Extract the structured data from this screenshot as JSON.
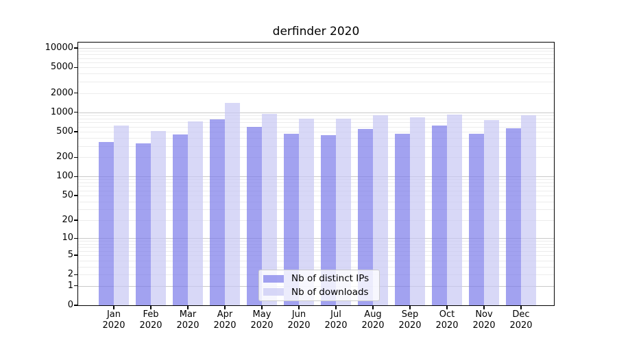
{
  "figure_title": "derfinder 2020",
  "chart_data": {
    "type": "bar",
    "title": "derfinder 2020",
    "categories": [
      "Jan",
      "Feb",
      "Mar",
      "Apr",
      "May",
      "Jun",
      "Jul",
      "Aug",
      "Sep",
      "Oct",
      "Nov",
      "Dec"
    ],
    "x_tick_second_line": "2020",
    "series": [
      {
        "name": "Nb of distinct IPs",
        "color": "#a2a2f0",
        "fill": "rgba(122,122,234,0.7)",
        "values": [
          345,
          325,
          450,
          780,
          600,
          460,
          445,
          550,
          460,
          620,
          465,
          565
        ]
      },
      {
        "name": "Nb of downloads",
        "color": "#d8d8f7",
        "fill": "rgba(199,199,244,0.7)",
        "values": [
          620,
          515,
          720,
          1400,
          950,
          800,
          790,
          900,
          835,
          930,
          765,
          905
        ]
      }
    ],
    "xlabel": "",
    "ylabel": "",
    "y_axis": {
      "scale": "log10(value+1)",
      "ylim": [
        0,
        12500
      ],
      "tick_labels": [
        "10000",
        "5000",
        "2000",
        "1000",
        "500",
        "200",
        "100",
        "50",
        "20",
        "10",
        "5",
        "2",
        "1",
        "0"
      ],
      "tick_values": [
        10000,
        5000,
        2000,
        1000,
        500,
        200,
        100,
        50,
        20,
        10,
        5,
        2,
        1,
        0
      ],
      "grid": "horizontal, major at powers of ten (darker) plus minor at 2-9 multiples (lighter)"
    },
    "legend_position": "lower center, inside plot"
  },
  "colors": {
    "background": "#ffffff",
    "spine": "#000000",
    "grid_major": "#c9c9c9",
    "grid_minor": "#ececec",
    "legend_border": "#cccccc",
    "legend_background": "rgba(255,255,255,0.8)",
    "text": "#000000"
  }
}
